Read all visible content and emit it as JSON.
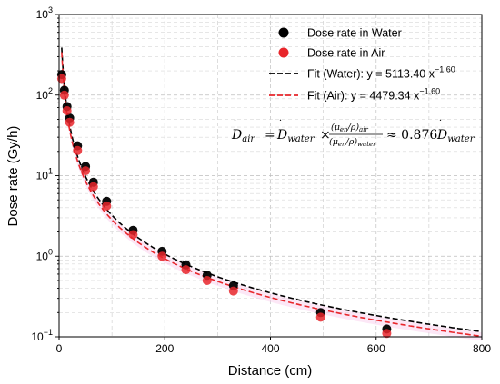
{
  "chart_data": {
    "type": "scatter",
    "xlabel": "Distance (cm)",
    "ylabel": "Dose rate (Gy/h)",
    "xlim": [
      0,
      800
    ],
    "ylim": [
      0.1,
      1000
    ],
    "yscale": "log",
    "grid": true,
    "x_ticks": [
      "0",
      "200",
      "400",
      "600",
      "800"
    ],
    "y_ticks": [
      {
        "base": "10",
        "exp": "−1"
      },
      {
        "base": "10",
        "exp": "0"
      },
      {
        "base": "10",
        "exp": "1"
      },
      {
        "base": "10",
        "exp": "2"
      },
      {
        "base": "10",
        "exp": "3"
      }
    ],
    "legend_position": "top-right",
    "series": [
      {
        "name": "Dose rate in Water",
        "kind": "points",
        "color": "#000000",
        "x": [
          5,
          10,
          15,
          20,
          35,
          50,
          65,
          90,
          140,
          195,
          240,
          280,
          330,
          495,
          620
        ],
        "y": [
          180,
          115,
          72,
          52,
          23.5,
          13,
          8.3,
          4.8,
          2.1,
          1.15,
          0.78,
          0.58,
          0.43,
          0.2,
          0.125
        ]
      },
      {
        "name": "Dose rate in Air",
        "kind": "points",
        "color": "#e8262b",
        "x": [
          5,
          10,
          15,
          20,
          35,
          50,
          65,
          90,
          140,
          195,
          240,
          280,
          330,
          495,
          620
        ],
        "y": [
          160,
          100,
          64,
          46,
          20.5,
          11.5,
          7.3,
          4.2,
          1.85,
          1.0,
          0.68,
          0.5,
          0.37,
          0.175,
          0.11
        ]
      },
      {
        "name": "Fit (Water): y = 5113.40 x",
        "exponent": "−1.60",
        "kind": "fit",
        "color": "#000000",
        "a": 5113.4,
        "b": -1.6
      },
      {
        "name": "Fit (Air): y = 4479.34 x",
        "exponent": "−1.60",
        "kind": "fit",
        "color": "#e8262b",
        "a": 4479.34,
        "b": -1.6
      }
    ],
    "annotation": {
      "lhs": "D",
      "lhs_sub": "air",
      "eq": "=",
      "d2": "D",
      "d2_sub": "water",
      "times": "×",
      "num": "(μ",
      "num_sub": "en",
      "num_rest": "/ρ)",
      "num_sub2": "air",
      "den": "(μ",
      "den_sub": "en",
      "den_rest": "/ρ)",
      "den_sub2": "water",
      "approx": "≈ 0.876",
      "d3": "D",
      "d3_sub": "water"
    }
  }
}
